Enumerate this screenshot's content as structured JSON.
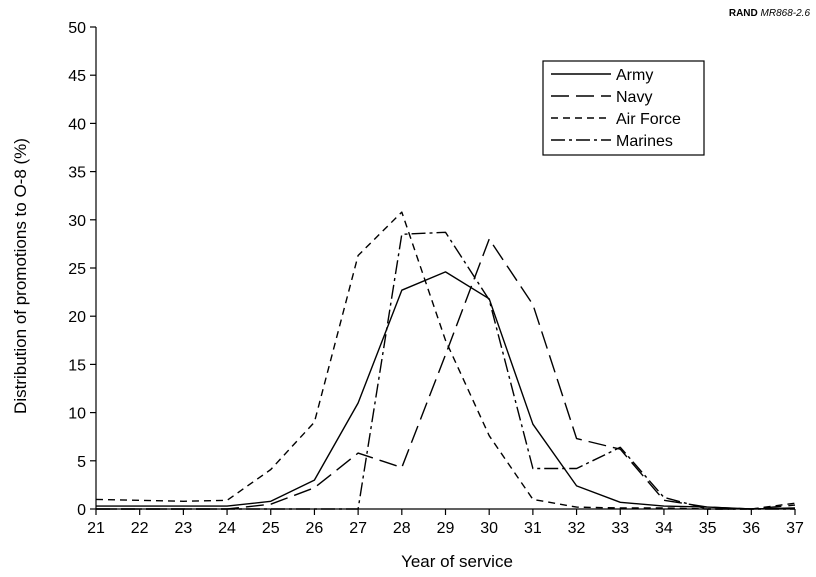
{
  "source_note": {
    "org": "RAND",
    "report": "MR868-2.6"
  },
  "chart_data": {
    "type": "line",
    "xlabel": "Year of service",
    "ylabel": "Distribution of promotions to O-8 (%)",
    "x": [
      21,
      22,
      23,
      24,
      25,
      26,
      27,
      28,
      29,
      30,
      31,
      32,
      33,
      34,
      35,
      36,
      37
    ],
    "xlim": [
      21,
      37
    ],
    "ylim": [
      0,
      50
    ],
    "y_ticks": [
      0,
      5,
      10,
      15,
      20,
      25,
      30,
      35,
      40,
      45,
      50
    ],
    "grid": false,
    "legend_position": "top-right",
    "series": [
      {
        "name": "Army",
        "dash": "solid",
        "color": "#000000",
        "values": [
          0.3,
          0.3,
          0.3,
          0.3,
          0.8,
          3.0,
          11.0,
          22.7,
          24.6,
          21.8,
          8.8,
          2.4,
          0.7,
          0.3,
          0.2,
          0.0,
          0.1
        ]
      },
      {
        "name": "Navy",
        "dash": "long-dash",
        "color": "#000000",
        "values": [
          0.0,
          0.0,
          0.0,
          0.0,
          0.5,
          2.2,
          5.8,
          4.3,
          16.0,
          28.0,
          21.2,
          7.3,
          6.2,
          0.9,
          0.2,
          0.0,
          0.4
        ]
      },
      {
        "name": "Air Force",
        "dash": "short-dash",
        "color": "#000000",
        "values": [
          1.0,
          0.9,
          0.8,
          0.9,
          4.1,
          9.0,
          26.3,
          30.8,
          17.5,
          7.6,
          1.0,
          0.2,
          0.1,
          0.1,
          0.0,
          0.0,
          0.6
        ]
      },
      {
        "name": "Marines",
        "dash": "dash-dot",
        "color": "#000000",
        "values": [
          0.0,
          0.0,
          0.0,
          0.0,
          0.0,
          0.0,
          0.0,
          28.5,
          28.7,
          21.7,
          4.2,
          4.2,
          6.4,
          1.2,
          0.0,
          0.0,
          0.0
        ]
      }
    ]
  }
}
